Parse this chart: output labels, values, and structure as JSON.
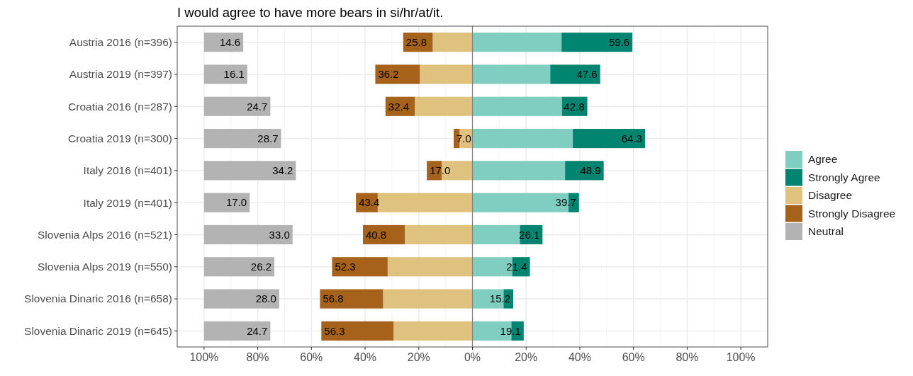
{
  "chart_data": [
    {
      "type": "bar",
      "orientation": "horizontal",
      "stacked": true,
      "title": "I would agree to have more bears in si/hr/at/it.",
      "categories": [
        "Austria 2016 (n=396)",
        "Austria 2019 (n=397)",
        "Croatia 2016 (n=287)",
        "Croatia 2019 (n=300)",
        "Italy 2016 (n=401)",
        "Italy 2019 (n=401)",
        "Slovenia Alps 2016 (n=521)",
        "Slovenia Alps 2019 (n=550)",
        "Slovenia Dinaric 2016 (n=658)",
        "Slovenia Dinaric 2019 (n=645)"
      ],
      "xlim": [
        -110,
        110
      ],
      "xticks": [
        {
          "value": -100,
          "label": "100%"
        },
        {
          "value": -80,
          "label": "80%"
        },
        {
          "value": -60,
          "label": "60%"
        },
        {
          "value": -40,
          "label": "40%"
        },
        {
          "value": -20,
          "label": "20%"
        },
        {
          "value": 0,
          "label": "0%"
        },
        {
          "value": 20,
          "label": "20%"
        },
        {
          "value": 40,
          "label": "40%"
        },
        {
          "value": 60,
          "label": "60%"
        },
        {
          "value": 80,
          "label": "80%"
        },
        {
          "value": 100,
          "label": "100%"
        }
      ],
      "grid": true,
      "legend": "right",
      "tick_labels": "x",
      "ref_lines": [
        {
          "axis": "x",
          "value": 0,
          "color": "#808080"
        }
      ],
      "series": [
        {
          "name": "Agree",
          "color": "#80cdc1",
          "values": [
            33.2,
            29.0,
            33.4,
            37.4,
            34.5,
            35.8,
            17.7,
            14.8,
            11.6,
            14.5
          ]
        },
        {
          "name": "Strongly Agree",
          "color": "#018571",
          "values": [
            26.4,
            18.6,
            9.4,
            26.9,
            14.4,
            3.9,
            8.4,
            6.6,
            3.6,
            4.6
          ]
        },
        {
          "name": "Disagree",
          "color": "#dfc27d",
          "values": [
            -14.8,
            -19.6,
            -21.5,
            -4.8,
            -11.5,
            -35.3,
            -25.2,
            -31.6,
            -33.3,
            -29.4
          ]
        },
        {
          "name": "Strongly Disagree",
          "color": "#a6611a",
          "values": [
            -11.0,
            -16.6,
            -10.9,
            -2.2,
            -5.5,
            -8.1,
            -15.6,
            -20.7,
            -23.5,
            -26.9
          ]
        }
      ],
      "annotations": [
        {
          "text": "59.6",
          "x": 59.6,
          "y": "Austria 2016 (n=396)"
        },
        {
          "text": "47.6",
          "x": 47.6,
          "y": "Austria 2019 (n=397)"
        },
        {
          "text": "42.8",
          "x": 42.8,
          "y": "Croatia 2016 (n=287)"
        },
        {
          "text": "64.3",
          "x": 64.3,
          "y": "Croatia 2019 (n=300)"
        },
        {
          "text": "48.9",
          "x": 48.9,
          "y": "Italy 2016 (n=401)"
        },
        {
          "text": "39.7",
          "x": 39.7,
          "y": "Italy 2019 (n=401)"
        },
        {
          "text": "26.1",
          "x": 26.1,
          "y": "Slovenia Alps 2016 (n=521)"
        },
        {
          "text": "21.4",
          "x": 21.4,
          "y": "Slovenia Alps 2019 (n=550)"
        },
        {
          "text": "15.2",
          "x": 15.2,
          "y": "Slovenia Dinaric 2016 (n=658)"
        },
        {
          "text": "19.1",
          "x": 19.1,
          "y": "Slovenia Dinaric 2019 (n=645)"
        },
        {
          "text": "25.8",
          "x": -25.8,
          "y": "Austria 2016 (n=396)"
        },
        {
          "text": "36.2",
          "x": -36.2,
          "y": "Austria 2019 (n=397)"
        },
        {
          "text": "32.4",
          "x": -32.4,
          "y": "Croatia 2016 (n=287)"
        },
        {
          "text": "7.0",
          "x": -7.0,
          "y": "Croatia 2019 (n=300)"
        },
        {
          "text": "17.0",
          "x": -17.0,
          "y": "Italy 2016 (n=401)"
        },
        {
          "text": "43.4",
          "x": -43.4,
          "y": "Italy 2019 (n=401)"
        },
        {
          "text": "40.8",
          "x": -40.8,
          "y": "Slovenia Alps 2016 (n=521)"
        },
        {
          "text": "52.3",
          "x": -52.3,
          "y": "Slovenia Alps 2019 (n=550)"
        },
        {
          "text": "56.8",
          "x": -56.8,
          "y": "Slovenia Dinaric 2016 (n=658)"
        },
        {
          "text": "56.3",
          "x": -56.3,
          "y": "Slovenia Dinaric 2019 (n=645)"
        }
      ]
    },
    {
      "type": "bar",
      "orientation": "horizontal",
      "tick_labels": "y",
      "categories": [
        "Austria 2016 (n=396)",
        "Austria 2019 (n=397)",
        "Croatia 2016 (n=287)",
        "Croatia 2019 (n=300)",
        "Italy 2016 (n=401)",
        "Italy 2019 (n=401)",
        "Slovenia Alps 2016 (n=521)",
        "Slovenia Alps 2019 (n=550)",
        "Slovenia Dinaric 2016 (n=658)",
        "Slovenia Dinaric 2019 (n=645)"
      ],
      "xlim": [
        -10,
        210
      ],
      "series": [
        {
          "name": "Neutral",
          "color": "#b3b3b3",
          "values": [
            14.6,
            16.1,
            24.7,
            28.7,
            34.2,
            17.0,
            33.0,
            26.2,
            28.0,
            24.7
          ],
          "value_labels": [
            "14.6",
            "16.1",
            "24.7",
            "28.7",
            "34.2",
            "17.0",
            "33.0",
            "26.2",
            "28.0",
            "24.7"
          ]
        }
      ]
    }
  ]
}
